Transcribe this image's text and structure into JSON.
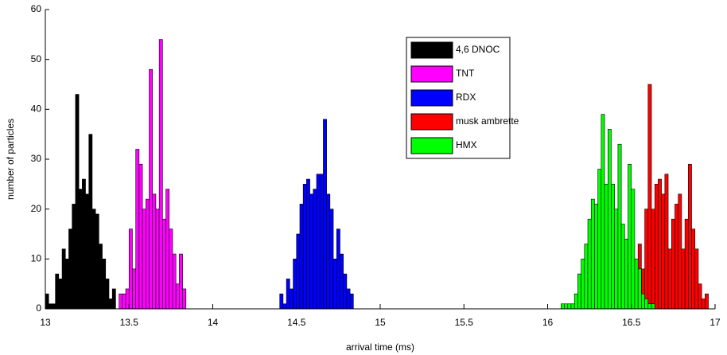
{
  "chart_data": {
    "type": "histogram",
    "xlabel": "arrival time (ms)",
    "ylabel": "number of particles",
    "xlim": [
      13,
      17
    ],
    "xticks": [
      13,
      13.5,
      14,
      14.5,
      15,
      15.5,
      16,
      16.5,
      17
    ],
    "ylim": [
      0,
      60
    ],
    "yticks": [
      0,
      10,
      20,
      30,
      40,
      50,
      60
    ],
    "grid": false,
    "series": [
      {
        "name": "4,6 DNOC",
        "color": "#000000",
        "bins": [
          13,
          13.02,
          13.04,
          13.06,
          13.08,
          13.1,
          13.12,
          13.14,
          13.16,
          13.18,
          13.2,
          13.22,
          13.24,
          13.26,
          13.28,
          13.3,
          13.32,
          13.34,
          13.36,
          13.38,
          13.4,
          13.42
        ],
        "values": [
          3,
          1,
          1,
          7,
          6,
          12,
          10,
          16,
          21,
          43,
          24,
          26,
          23,
          35,
          20,
          19,
          13,
          10,
          6,
          2,
          4
        ]
      },
      {
        "name": "TNT",
        "color": "#ff00ff",
        "bins": [
          13.44,
          13.46,
          13.48,
          13.5,
          13.52,
          13.54,
          13.56,
          13.58,
          13.6,
          13.62,
          13.64,
          13.66,
          13.68,
          13.7,
          13.72,
          13.74,
          13.76,
          13.78,
          13.8,
          13.82,
          13.84
        ],
        "values": [
          3,
          3,
          4,
          16,
          8,
          32,
          29,
          20,
          22,
          48,
          23,
          20,
          54,
          18,
          24,
          16,
          11,
          5,
          11,
          4
        ]
      },
      {
        "name": "RDX",
        "color": "#0000ff",
        "bins": [
          14.4,
          14.42,
          14.44,
          14.46,
          14.48,
          14.5,
          14.52,
          14.54,
          14.56,
          14.58,
          14.6,
          14.62,
          14.64,
          14.66,
          14.68,
          14.7,
          14.72,
          14.74,
          14.76,
          14.78,
          14.8,
          14.82,
          14.84
        ],
        "values": [
          3,
          1,
          6,
          4,
          10,
          15,
          21,
          25,
          26,
          23,
          24,
          27,
          27,
          38,
          23,
          20,
          10,
          16,
          11,
          7,
          4,
          3
        ]
      },
      {
        "name": "musk ambrette",
        "color": "#ff0000",
        "bins": [
          16.4,
          16.42,
          16.44,
          16.46,
          16.48,
          16.5,
          16.52,
          16.54,
          16.56,
          16.58,
          16.6,
          16.62,
          16.64,
          16.66,
          16.68,
          16.7,
          16.72,
          16.74,
          16.76,
          16.78,
          16.8,
          16.82,
          16.84,
          16.86,
          16.88,
          16.9,
          16.92,
          16.94,
          16.96
        ],
        "values": [
          1,
          2,
          3,
          5,
          7,
          9,
          10,
          13,
          8,
          20,
          45,
          20,
          25,
          26,
          23,
          27,
          12,
          18,
          21,
          23,
          12,
          18,
          29,
          16,
          12,
          5,
          2,
          3
        ]
      },
      {
        "name": "HMX",
        "color": "#00ff00",
        "bins": [
          16.08,
          16.1,
          16.12,
          16.14,
          16.16,
          16.18,
          16.2,
          16.22,
          16.24,
          16.26,
          16.28,
          16.3,
          16.32,
          16.34,
          16.36,
          16.38,
          16.4,
          16.42,
          16.44,
          16.46,
          16.48,
          16.5,
          16.52,
          16.54,
          16.56,
          16.58,
          16.6,
          16.62,
          16.64
        ],
        "values": [
          1,
          1,
          1,
          1,
          3,
          7,
          10,
          13,
          18,
          22,
          21,
          28,
          39,
          25,
          36,
          25,
          20,
          33,
          17,
          14,
          29,
          24,
          10,
          8,
          3,
          2,
          1,
          1
        ]
      }
    ]
  }
}
